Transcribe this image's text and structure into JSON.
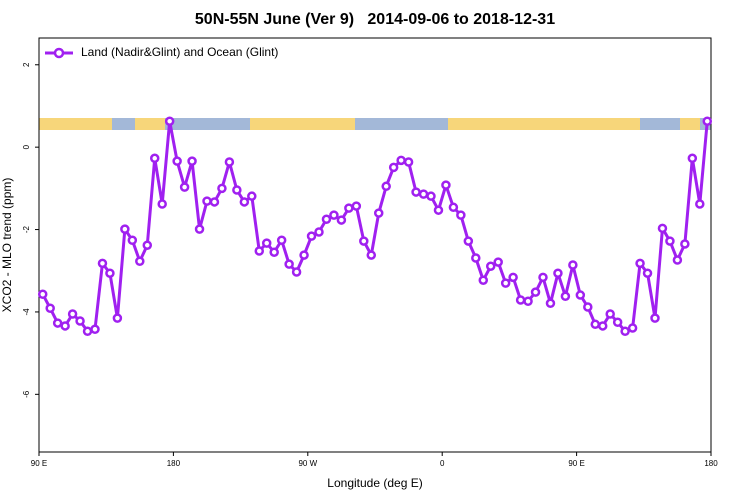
{
  "chart_data": {
    "type": "line",
    "title": "50N-55N June (Ver 9)   2014-09-06 to 2018-12-31",
    "xlabel": "Longitude (deg E)",
    "ylabel": "XCO2 - MLO trend (ppm)",
    "xlim": [
      90,
      540
    ],
    "ylim": [
      -7.4,
      2.65
    ],
    "xticks": [
      {
        "value": 90,
        "label": "90 E"
      },
      {
        "value": 180,
        "label": "180"
      },
      {
        "value": 270,
        "label": "90 W"
      },
      {
        "value": 360,
        "label": "0"
      },
      {
        "value": 450,
        "label": "90 E"
      },
      {
        "value": 540,
        "label": "180"
      }
    ],
    "yticks": [
      -6,
      -4,
      -2,
      0,
      2
    ],
    "legend": "top-left",
    "x": [
      92.5,
      97.5,
      102.5,
      107.5,
      112.5,
      117.5,
      122.5,
      127.5,
      132.5,
      137.5,
      142.5,
      147.5,
      152.5,
      157.5,
      162.5,
      167.5,
      172.5,
      177.5,
      182.5,
      187.5,
      192.5,
      197.5,
      202.5,
      207.5,
      212.5,
      217.5,
      222.5,
      227.5,
      232.5,
      237.5,
      242.5,
      247.5,
      252.5,
      257.5,
      262.5,
      267.5,
      272.5,
      277.5,
      282.5,
      287.5,
      292.5,
      297.5,
      302.5,
      307.5,
      312.5,
      317.5,
      322.5,
      327.5,
      332.5,
      337.5,
      342.5,
      347.5,
      352.5,
      357.5,
      362.5,
      367.5,
      372.5,
      377.5,
      382.5,
      387.5,
      392.5,
      397.5,
      402.5,
      407.5,
      412.5,
      417.5,
      422.5,
      427.5,
      432.5,
      437.5,
      442.5,
      447.5,
      452.5,
      457.5,
      462.5,
      467.5,
      472.5,
      477.5,
      482.5,
      487.5,
      492.5,
      497.5,
      502.5,
      507.5,
      512.5,
      517.5,
      522.5,
      527.5,
      532.5,
      537.5
    ],
    "series": [
      {
        "name": "Land (Nadir&Glint) and Ocean (Glint)",
        "color": "#a020f0",
        "values": [
          -3.57,
          -3.91,
          -4.27,
          -4.34,
          -4.05,
          -4.22,
          -4.47,
          -4.42,
          -2.82,
          -3.06,
          -4.15,
          -1.99,
          -2.26,
          -2.77,
          -2.38,
          -0.27,
          -1.38,
          0.63,
          -0.34,
          -0.97,
          -0.34,
          -1.99,
          -1.31,
          -1.33,
          -1.0,
          -0.36,
          -1.04,
          -1.33,
          -1.19,
          -2.52,
          -2.33,
          -2.55,
          -2.26,
          -2.84,
          -3.03,
          -2.62,
          -2.16,
          -2.06,
          -1.75,
          -1.65,
          -1.77,
          -1.48,
          -1.43,
          -2.28,
          -2.62,
          -1.6,
          -0.95,
          -0.49,
          -0.32,
          -0.36,
          -1.09,
          -1.14,
          -1.19,
          -1.53,
          -0.92,
          -1.46,
          -1.65,
          -2.28,
          -2.69,
          -3.23,
          -2.89,
          -2.79,
          -3.3,
          -3.16,
          -3.71,
          -3.74,
          -3.52,
          -3.16,
          -3.79,
          -3.06,
          -3.62,
          -2.86,
          -3.59,
          -3.88,
          -4.3,
          -4.34,
          -4.05,
          -4.25,
          -4.47,
          -4.39,
          -2.82,
          -3.06,
          -4.15,
          -1.97,
          -2.28,
          -2.74,
          -2.35,
          -0.27,
          -1.38,
          0.63
        ]
      }
    ]
  }
}
